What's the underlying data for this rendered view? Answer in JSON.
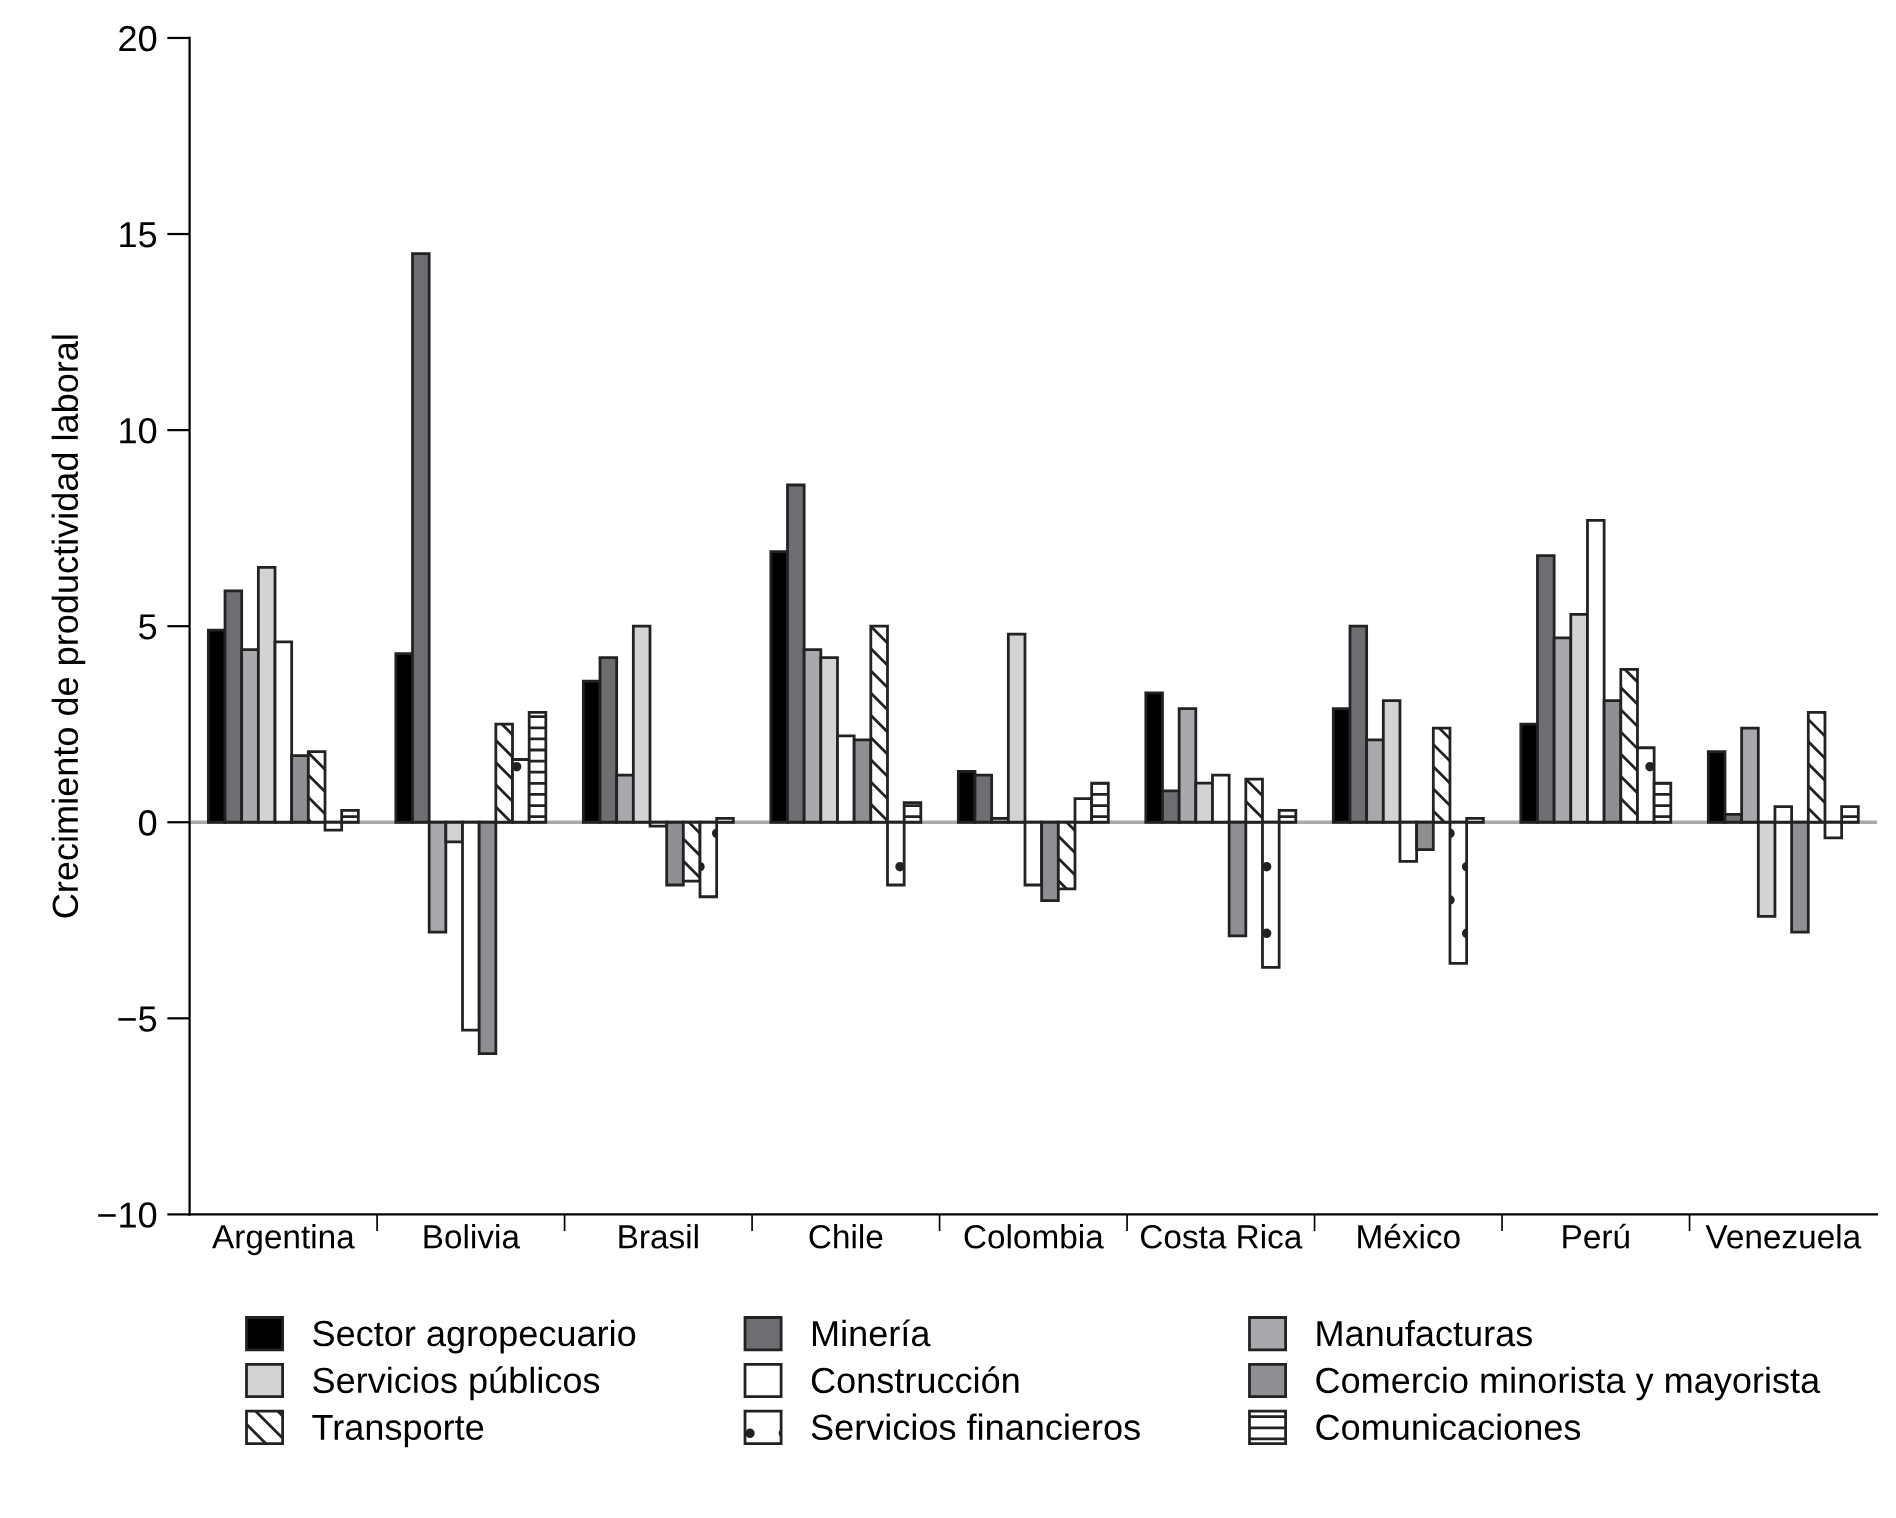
{
  "chart_data": {
    "type": "bar",
    "ylabel": "Crecimiento de productividad laboral",
    "categories": [
      "Argentina",
      "Bolivia",
      "Brasil",
      "Chile",
      "Colombia",
      "Costa Rica",
      "México",
      "Perú",
      "Venezuela"
    ],
    "series": [
      {
        "name": "Sector agropecuario",
        "color": "#000000",
        "values": [
          4.9,
          4.3,
          3.6,
          6.9,
          1.3,
          3.3,
          2.9,
          2.5,
          1.8
        ]
      },
      {
        "name": "Minería",
        "color": "#6d6e71",
        "values": [
          5.9,
          14.5,
          4.2,
          8.6,
          1.2,
          0.8,
          5.0,
          6.8,
          0.2
        ]
      },
      {
        "name": "Manufacturas",
        "color": "#a7a9ac",
        "values": [
          4.4,
          -2.8,
          1.2,
          4.4,
          0.1,
          2.9,
          2.1,
          4.7,
          2.4
        ]
      },
      {
        "name": "Servicios públicos",
        "color": "#d1d3d4",
        "values": [
          6.5,
          -0.5,
          5.0,
          4.2,
          4.8,
          1.0,
          3.1,
          5.3,
          -2.4
        ]
      },
      {
        "name": "Construcción",
        "color": "#ffffff",
        "values": [
          4.6,
          -5.3,
          -0.1,
          2.2,
          -1.6,
          1.2,
          -1.0,
          7.7,
          0.4
        ]
      },
      {
        "name": "Comercio minorista y mayorista",
        "color": "#8e8f92",
        "values": [
          1.7,
          -5.9,
          -1.6,
          2.1,
          -2.0,
          -2.9,
          -0.7,
          3.1,
          -2.8
        ]
      },
      {
        "name": "Transporte",
        "color": "#222222",
        "values": [
          1.8,
          2.5,
          -1.5,
          5.0,
          -1.7,
          1.1,
          2.4,
          3.9,
          2.8
        ]
      },
      {
        "name": "Servicios financieros",
        "color": "#222222",
        "values": [
          -0.2,
          1.6,
          -1.9,
          -1.6,
          0.6,
          -3.7,
          -3.6,
          1.9,
          -0.4
        ]
      },
      {
        "name": "Comunicaciones",
        "color": "#222222",
        "values": [
          0.3,
          2.8,
          0.1,
          0.5,
          1.0,
          0.3,
          0.1,
          1.0,
          0.4
        ]
      }
    ],
    "ylim": [
      -10,
      20
    ],
    "yticks": [
      {
        "value": -10,
        "label": "−10"
      },
      {
        "value": -5,
        "label": "−5"
      },
      0,
      5,
      10,
      15,
      20
    ],
    "ref_lines": [
      {
        "axis": "y",
        "value": 0,
        "color": "#aaaaaa"
      }
    ],
    "legend": "bottom",
    "grid": false
  }
}
